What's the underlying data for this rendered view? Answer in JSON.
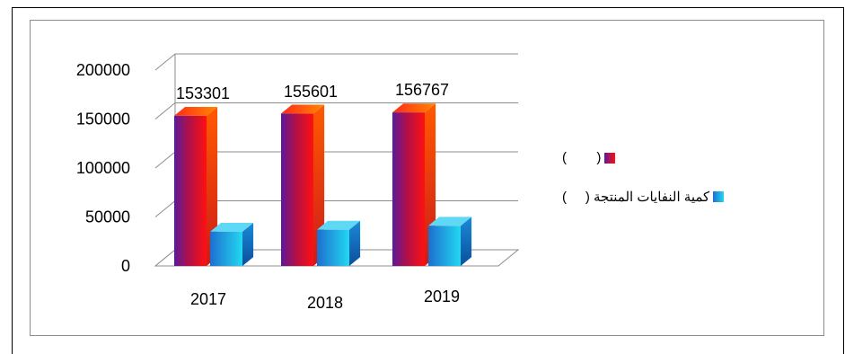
{
  "chart_data": {
    "type": "bar",
    "title": "",
    "xlabel": "",
    "ylabel": "",
    "categories": [
      "2017",
      "2018",
      "2019"
    ],
    "ylim": [
      0,
      200000
    ],
    "yticks": [
      "0",
      "50000",
      "100000",
      "150000",
      "200000"
    ],
    "grid": true,
    "legend_position": "right",
    "series": [
      {
        "legend_text": "(        )",
        "color": "#d40000",
        "values": [
          153301,
          155601,
          156767
        ]
      },
      {
        "legend_text": "كمية النفايات المنتجة (     )",
        "color": "#1fb6e0",
        "values": [
          35000,
          37000,
          41000
        ]
      }
    ],
    "data_labels": [
      "153301",
      "155601",
      "156767"
    ]
  }
}
